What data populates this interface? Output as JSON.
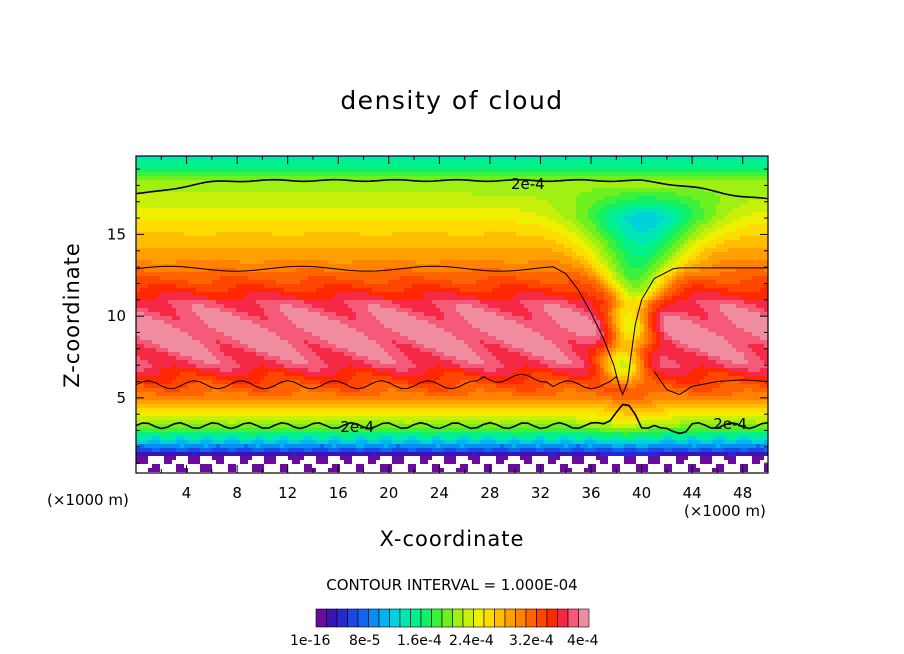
{
  "chart_data": {
    "type": "heatmap",
    "title": "density of cloud",
    "xlabel": "X-coordinate",
    "ylabel": "Z-coordinate",
    "x_unit": "(×1000 m)",
    "xlim": [
      0,
      50
    ],
    "ylim": [
      0.4,
      19.8
    ],
    "x_ticks": [
      4,
      8,
      12,
      16,
      20,
      24,
      28,
      32,
      36,
      40,
      44,
      48
    ],
    "y_ticks": [
      5,
      10,
      15
    ],
    "contour_interval_text": "CONTOUR INTERVAL = 1.000E-04",
    "contour_labels": [
      {
        "text": "2e-4",
        "x": 31,
        "z": 18.1
      },
      {
        "text": "2e-4",
        "x": 17.5,
        "z": 3.2
      },
      {
        "text": "2e-4",
        "x": 47,
        "z": 3.4
      }
    ],
    "colorbar": {
      "labels": [
        "1e-16",
        "8e-5",
        "1.6e-4",
        "2.4e-4",
        "3.2e-4",
        "4e-4"
      ],
      "colors": [
        "#6a0a9e",
        "#3c14b4",
        "#2828d2",
        "#1e46e6",
        "#1464f0",
        "#0a8cf5",
        "#00b4f0",
        "#00d2dc",
        "#00e6b4",
        "#00f08c",
        "#14f064",
        "#3cf03c",
        "#6ef01e",
        "#a0f014",
        "#c8f00a",
        "#eef000",
        "#ffdc00",
        "#ffbe00",
        "#ffa000",
        "#ff8200",
        "#ff6400",
        "#ff4600",
        "#ff2800",
        "#f52846",
        "#f55a78",
        "#f08ca0"
      ]
    }
  }
}
